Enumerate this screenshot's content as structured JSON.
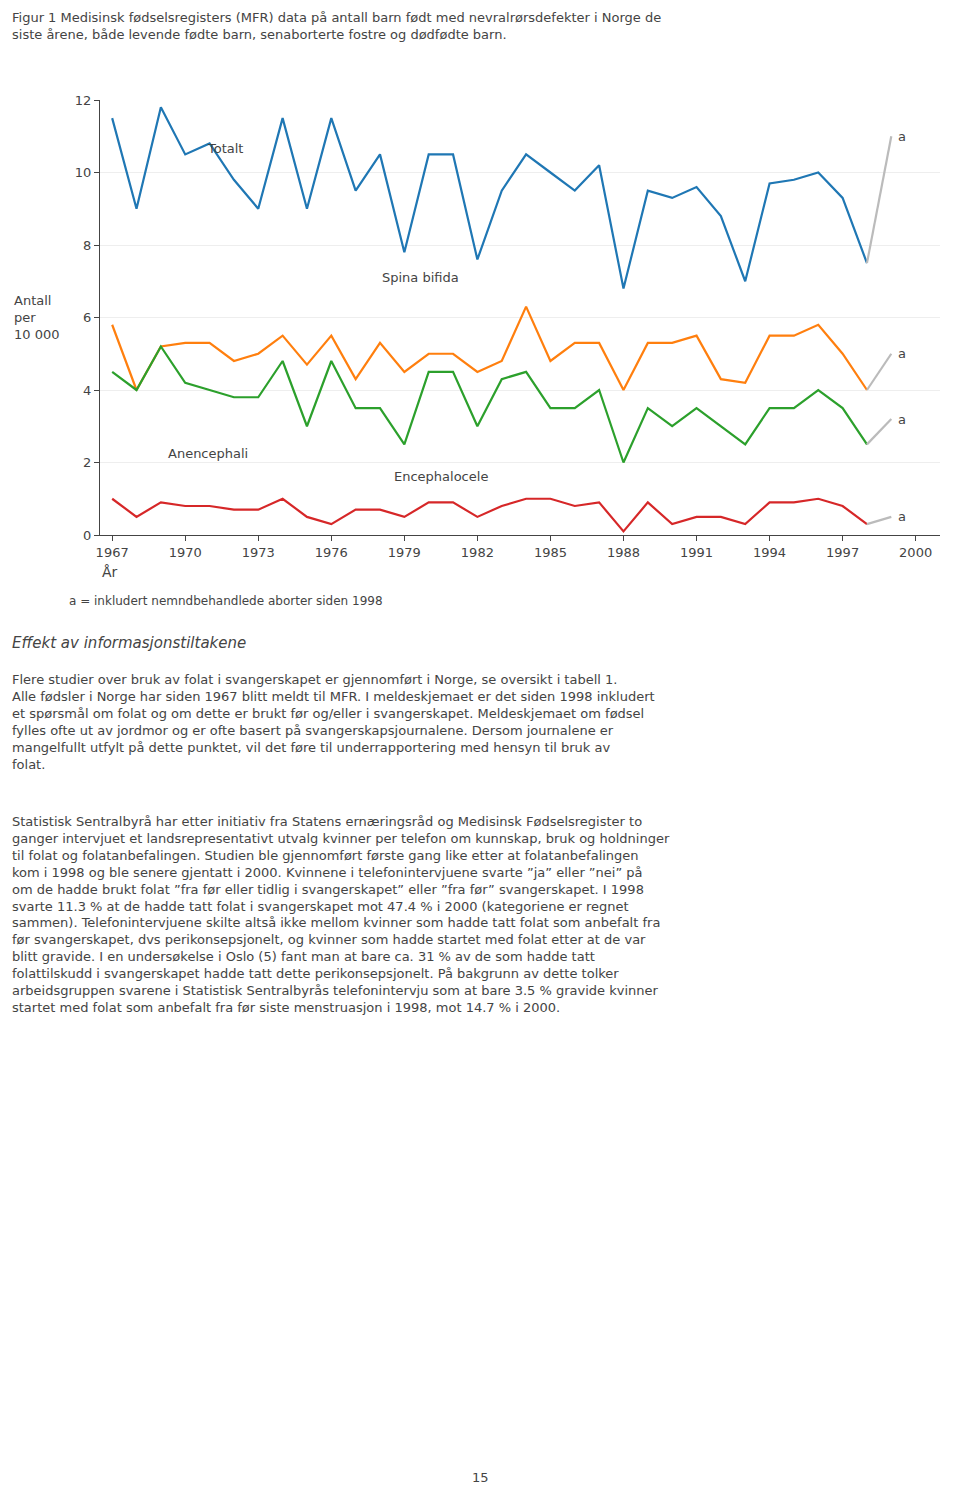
{
  "chart_data": {
    "type": "line",
    "title": "Figur 1 Medisinsk fødselsregisters (MFR) data på antall barn født med nevralrørsdefekter i Norge de\nsiste årene, både levende fødte barn, senaborterte fostre og dødfødte barn.",
    "xlabel": "År",
    "ylabel": "Antall\nper\n10 000",
    "x": [
      1967,
      1968,
      1969,
      1970,
      1971,
      1972,
      1973,
      1974,
      1975,
      1976,
      1977,
      1978,
      1979,
      1980,
      1981,
      1982,
      1983,
      1984,
      1985,
      1986,
      1987,
      1988,
      1989,
      1990,
      1991,
      1992,
      1993,
      1994,
      1995,
      1996,
      1997,
      1998
    ],
    "series": [
      {
        "name": "Totalt",
        "values": [
          11.5,
          9.0,
          11.8,
          10.5,
          10.8,
          9.8,
          9.0,
          11.5,
          9.0,
          11.5,
          9.5,
          10.5,
          7.8,
          10.5,
          10.5,
          7.6,
          9.5,
          10.5,
          10.0,
          9.5,
          10.2,
          6.8,
          9.5,
          9.3,
          9.6,
          8.8,
          7.0,
          9.7,
          9.8,
          10.0,
          9.3,
          7.5
        ],
        "extension": {
          "x": 1999,
          "value": 11.0,
          "label": "a",
          "color": "#bbbbbb"
        }
      },
      {
        "name": "Spina bifida",
        "values": [
          5.8,
          4.0,
          5.2,
          5.3,
          5.3,
          4.8,
          5.0,
          5.5,
          4.7,
          5.5,
          4.3,
          5.3,
          4.5,
          5.0,
          5.0,
          4.5,
          4.8,
          6.3,
          4.8,
          5.3,
          5.3,
          4.0,
          5.3,
          5.3,
          5.5,
          4.3,
          4.2,
          5.5,
          5.5,
          5.8,
          5.0,
          4.0
        ],
        "extension": {
          "x": 1999,
          "value": 5.0,
          "label": "a",
          "color": "#bbbbbb"
        }
      },
      {
        "name": "Anencephali",
        "values": [
          4.5,
          4.0,
          5.2,
          4.2,
          4.0,
          3.8,
          3.8,
          4.8,
          3.0,
          4.8,
          3.5,
          3.5,
          2.5,
          4.5,
          4.5,
          3.0,
          4.3,
          4.5,
          3.5,
          3.5,
          4.0,
          2.0,
          3.5,
          3.0,
          3.5,
          3.0,
          2.5,
          3.5,
          3.5,
          4.0,
          3.5,
          2.5
        ],
        "extension": {
          "x": 1999,
          "value": 3.2,
          "label": "a",
          "color": "#bbbbbb"
        }
      },
      {
        "name": "Encephalocele",
        "values": [
          1.0,
          0.5,
          0.9,
          0.8,
          0.8,
          0.7,
          0.7,
          1.0,
          0.5,
          0.3,
          0.7,
          0.7,
          0.5,
          0.9,
          0.9,
          0.5,
          0.8,
          1.0,
          1.0,
          0.8,
          0.9,
          0.1,
          0.9,
          0.3,
          0.5,
          0.5,
          0.3,
          0.9,
          0.9,
          1.0,
          0.8,
          0.3
        ],
        "extension": {
          "x": 1999,
          "value": 0.5,
          "label": "a",
          "color": "#bbbbbb"
        }
      }
    ],
    "xlim": [
      1966.5,
      2001
    ],
    "xticks": [
      1967,
      1970,
      1973,
      1976,
      1979,
      1982,
      1985,
      1988,
      1991,
      1994,
      1997,
      2000
    ],
    "ylim": [
      0,
      12
    ],
    "yticks": [
      0,
      2,
      4,
      6,
      8,
      10,
      12
    ],
    "grid": true,
    "footnote": "a = inkludert nemndbehandlede aborter siden 1998",
    "section_heading": "Effekt av informasjonstiltakene",
    "paragraphs": [
      "Flere studier over bruk av folat i svangerskapet er gjennomført i Norge, se oversikt i tabell 1. Alle fødsler i Norge har siden 1967 blitt meldt til MFR. I meldeskjemaet er det siden 1998 inkludert et spørsmål om folat og om dette er brukt før og/eller i svangerskapet. Meldeskjemaet om fødsel fylles ofte ut av jordmor og er ofte basert på svangerskapsjournalene. Dersom journalene er mangelfullt utfylt på dette punktet, vil det føre til underrapportering med hensyn til bruk av folat.",
      "Statistisk Sentralbyrå har etter initiativ fra Statens ernæringsråd og Medisinsk Fødselsregister to ganger intervjuet et landsrepresentativt utvalg kvinner per telefon om kunnskap, bruk og holdninger til folat og folatanbefalingen. Studien ble gjennomført første gang like etter at folatanbefalingen kom i 1998 og ble senere gjentatt i 2000. Kvinnene i telefonintervjuene svarte ”ja” eller ”nei” på om de hadde brukt folat ”fra før eller tidlig i svangerskapet” eller ”fra før” svangerskapet. I 1998 svarte 11.3 % at de hadde tatt folat i svangerskapet mot 47.4 % i 2000 (kategoriene er regnet sammen). Telefonintervjuene skilte altså ikke mellom kvinner som hadde tatt folat som anbefalt fra før svangerskapet, dvs perikonsepsjonelt, og kvinner som hadde startet med folat etter at de var blitt gravide. I en undersøkelse i Oslo (5) fant man at bare ca. 31 % av de som hadde tatt folattilskudd i svangerskapet hadde tatt dette perikonsepsjonelt. På bakgrunn av dette tolker arbeidsgruppen svarene i Statistisk Sentralbyrås telefonintervju som at bare 3.5 % gravide kvinner startet med folat som anbefalt fra før siste menstruasjon i 1998, mot 14.7 % i 2000."
    ],
    "page_number": "15"
  }
}
